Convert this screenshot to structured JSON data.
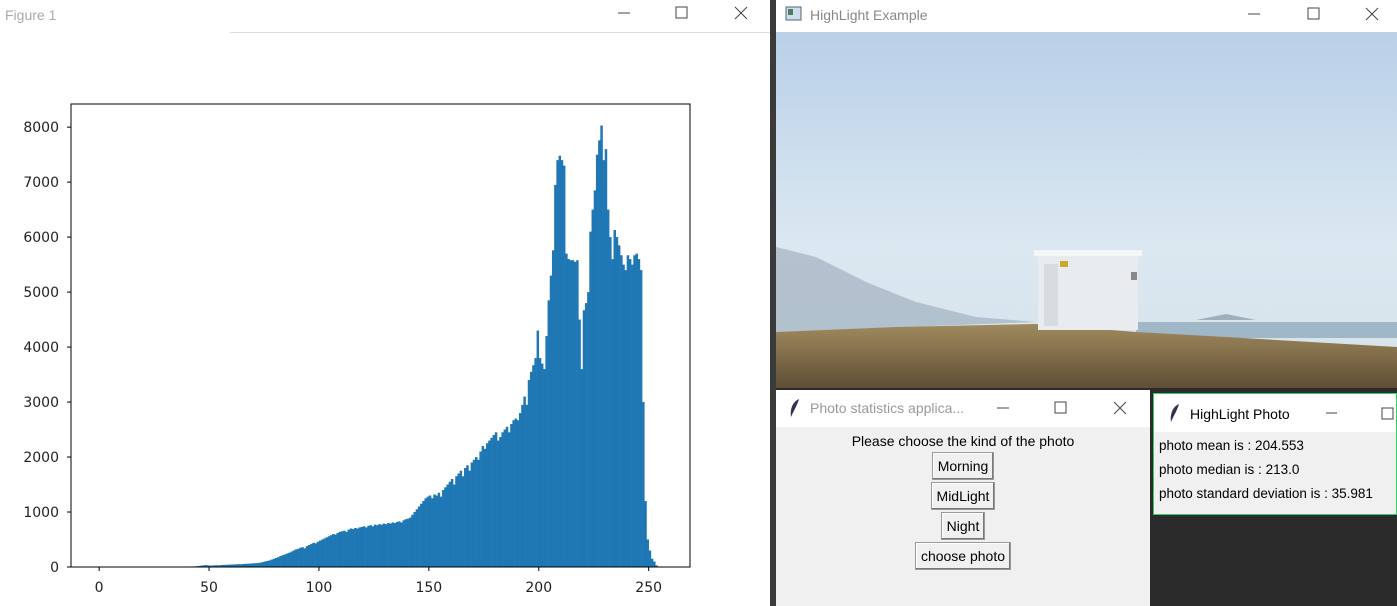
{
  "figure_window": {
    "title": "Figure 1"
  },
  "chart_data": {
    "type": "histogram",
    "color": "#1f77b4",
    "xlim": [
      -12.8,
      268.8
    ],
    "ylim": [
      0,
      8421
    ],
    "xticks": [
      0,
      50,
      100,
      150,
      200,
      250
    ],
    "yticks": [
      0,
      1000,
      2000,
      3000,
      4000,
      5000,
      6000,
      7000,
      8000
    ],
    "bins": [
      0,
      1,
      2,
      3,
      4,
      5,
      6,
      7,
      8,
      9,
      10,
      11,
      12,
      13,
      14,
      15,
      16,
      17,
      18,
      19,
      20,
      21,
      22,
      23,
      24,
      25,
      26,
      27,
      28,
      29,
      30,
      31,
      32,
      33,
      34,
      35,
      36,
      37,
      38,
      39,
      40,
      41,
      42,
      43,
      44,
      45,
      46,
      47,
      48,
      49,
      50,
      51,
      52,
      53,
      54,
      55,
      56,
      57,
      58,
      59,
      60,
      61,
      62,
      63,
      64,
      65,
      66,
      67,
      68,
      69,
      70,
      71,
      72,
      73,
      74,
      75,
      76,
      77,
      78,
      79,
      80,
      81,
      82,
      83,
      84,
      85,
      86,
      87,
      88,
      89,
      90,
      91,
      92,
      93,
      94,
      95,
      96,
      97,
      98,
      99,
      100,
      101,
      102,
      103,
      104,
      105,
      106,
      107,
      108,
      109,
      110,
      111,
      112,
      113,
      114,
      115,
      116,
      117,
      118,
      119,
      120,
      121,
      122,
      123,
      124,
      125,
      126,
      127,
      128,
      129,
      130,
      131,
      132,
      133,
      134,
      135,
      136,
      137,
      138,
      139,
      140,
      141,
      142,
      143,
      144,
      145,
      146,
      147,
      148,
      149,
      150,
      151,
      152,
      153,
      154,
      155,
      156,
      157,
      158,
      159,
      160,
      161,
      162,
      163,
      164,
      165,
      166,
      167,
      168,
      169,
      170,
      171,
      172,
      173,
      174,
      175,
      176,
      177,
      178,
      179,
      180,
      181,
      182,
      183,
      184,
      185,
      186,
      187,
      188,
      189,
      190,
      191,
      192,
      193,
      194,
      195,
      196,
      197,
      198,
      199,
      200,
      201,
      202,
      203,
      204,
      205,
      206,
      207,
      208,
      209,
      210,
      211,
      212,
      213,
      214,
      215,
      216,
      217,
      218,
      219,
      220,
      221,
      222,
      223,
      224,
      225,
      226,
      227,
      228,
      229,
      230,
      231,
      232,
      233,
      234,
      235,
      236,
      237,
      238,
      239,
      240,
      241,
      242,
      243,
      244,
      245,
      246,
      247,
      248,
      249,
      250,
      251,
      252,
      253,
      254,
      255,
      256
    ],
    "counts": [
      0,
      0,
      0,
      0,
      0,
      0,
      0,
      0,
      0,
      0,
      0,
      0,
      0,
      0,
      0,
      0,
      0,
      0,
      0,
      0,
      0,
      0,
      0,
      0,
      0,
      0,
      0,
      0,
      0,
      0,
      0,
      0,
      0,
      0,
      0,
      0,
      0,
      0,
      0,
      0,
      5,
      8,
      10,
      12,
      15,
      20,
      25,
      30,
      35,
      30,
      25,
      28,
      30,
      32,
      30,
      35,
      38,
      40,
      42,
      45,
      45,
      48,
      50,
      52,
      50,
      55,
      58,
      60,
      62,
      65,
      68,
      70,
      75,
      80,
      90,
      100,
      110,
      120,
      135,
      150,
      165,
      180,
      200,
      215,
      230,
      245,
      260,
      280,
      300,
      320,
      330,
      350,
      360,
      340,
      380,
      400,
      420,
      440,
      430,
      460,
      480,
      500,
      520,
      540,
      560,
      580,
      600,
      590,
      620,
      640,
      650,
      660,
      640,
      680,
      700,
      690,
      710,
      700,
      720,
      730,
      740,
      720,
      750,
      760,
      740,
      770,
      760,
      780,
      770,
      790,
      780,
      800,
      790,
      810,
      800,
      820,
      830,
      810,
      850,
      870,
      880,
      900,
      950,
      1000,
      1050,
      1100,
      1150,
      1200,
      1250,
      1280,
      1300,
      1250,
      1320,
      1300,
      1350,
      1280,
      1400,
      1450,
      1500,
      1550,
      1600,
      1500,
      1650,
      1700,
      1750,
      1650,
      1800,
      1850,
      1750,
      1900,
      1950,
      2000,
      1950,
      2100,
      2200,
      2150,
      2250,
      2300,
      2350,
      2400,
      2450,
      2300,
      2363,
      2450,
      2500,
      2550,
      2450,
      2600,
      2670,
      2700,
      2670,
      2800,
      2950,
      3100,
      2950,
      3400,
      3550,
      3670,
      3800,
      4300,
      3800,
      3700,
      3600,
      4200,
      4850,
      5300,
      5760,
      6950,
      7400,
      7480,
      7400,
      7300,
      5700,
      5600,
      5580,
      5580,
      5550,
      5580,
      4500,
      3600,
      4670,
      4800,
      5000,
      6100,
      6500,
      6850,
      7500,
      7760,
      8030,
      7400,
      7600,
      6500,
      6000,
      5600,
      6130,
      6000,
      5850,
      5670,
      5500,
      5400,
      5670,
      5600,
      5500,
      5670,
      5700,
      5600,
      5400,
      3000,
      1200,
      500,
      300,
      150,
      100,
      30,
      10,
      0
    ]
  },
  "highlight_example": {
    "title": "HighLight Example"
  },
  "stats_app": {
    "title": "Photo statistics applica...",
    "prompt": "Please choose the kind of the photo",
    "buttons": [
      "Morning",
      "MidLight",
      "Night",
      "choose photo"
    ]
  },
  "highlight_photo": {
    "title": "HighLight Photo",
    "lines": [
      "photo mean is : 204.553",
      "photo median is : 213.0",
      "photo standard deviation is : 35.981"
    ]
  }
}
